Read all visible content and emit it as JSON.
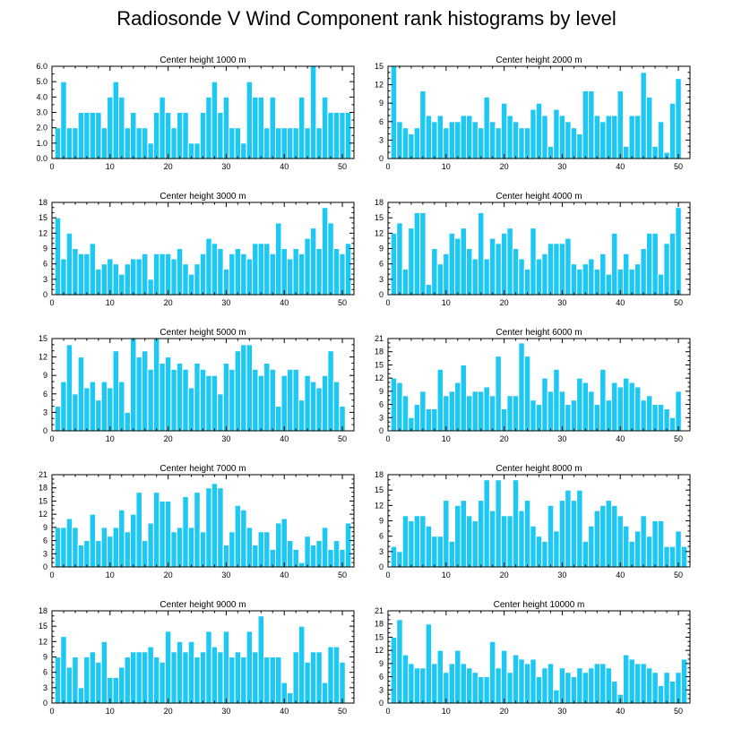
{
  "page_title": "Radiosonde V Wind Component rank histograms by level",
  "colors": {
    "bar": "#1ec8f5",
    "bar_edge": "#ffffff",
    "axis": "#000000"
  },
  "chart_data": [
    {
      "type": "bar",
      "title": "Center height 1000 m",
      "x": [
        1,
        2,
        3,
        4,
        5,
        6,
        7,
        8,
        9,
        10,
        11,
        12,
        13,
        14,
        15,
        16,
        17,
        18,
        19,
        20,
        21,
        22,
        23,
        24,
        25,
        26,
        27,
        28,
        29,
        30,
        31,
        32,
        33,
        34,
        35,
        36,
        37,
        38,
        39,
        40,
        41,
        42,
        43,
        44,
        45,
        46,
        47,
        48,
        49,
        50,
        51
      ],
      "values": [
        2,
        5,
        2,
        2,
        3,
        3,
        3,
        3,
        2,
        4,
        5,
        4,
        2,
        3,
        2,
        2,
        1,
        3,
        4,
        3,
        2,
        3,
        3,
        1,
        1,
        3,
        4,
        5,
        3,
        4,
        2,
        2,
        1,
        5,
        4,
        4,
        2,
        4,
        2,
        2,
        2,
        2,
        4,
        2,
        6,
        2,
        4,
        3,
        3,
        3,
        3
      ],
      "ylim": [
        0,
        6
      ],
      "yticks": [
        "0.0",
        "1.0",
        "2.0",
        "3.0",
        "4.0",
        "5.0",
        "6.0"
      ],
      "xlim": [
        0,
        52
      ],
      "xticks": [
        "0",
        "10",
        "20",
        "30",
        "40",
        "50"
      ]
    },
    {
      "type": "bar",
      "title": "Center height 2000 m",
      "x": [
        1,
        2,
        3,
        4,
        5,
        6,
        7,
        8,
        9,
        10,
        11,
        12,
        13,
        14,
        15,
        16,
        17,
        18,
        19,
        20,
        21,
        22,
        23,
        24,
        25,
        26,
        27,
        28,
        29,
        30,
        31,
        32,
        33,
        34,
        35,
        36,
        37,
        38,
        39,
        40,
        41,
        42,
        43,
        44,
        45,
        46,
        47,
        48,
        49,
        50,
        51
      ],
      "values": [
        15,
        6,
        5,
        4,
        5,
        11,
        7,
        6,
        7,
        5,
        6,
        6,
        7,
        7,
        6,
        5,
        10,
        6,
        5,
        9,
        7,
        6,
        5,
        5,
        8,
        9,
        7,
        2,
        8,
        7,
        6,
        5,
        4,
        11,
        11,
        7,
        6,
        7,
        7,
        11,
        2,
        7,
        7,
        14,
        10,
        2,
        6,
        1,
        9,
        13,
        0
      ],
      "ylim": [
        0,
        15
      ],
      "yticks": [
        "0",
        "3",
        "6",
        "9",
        "12",
        "15"
      ],
      "xlim": [
        0,
        52
      ],
      "xticks": [
        "0",
        "10",
        "20",
        "30",
        "40",
        "50"
      ]
    },
    {
      "type": "bar",
      "title": "Center height 3000 m",
      "x": [
        1,
        2,
        3,
        4,
        5,
        6,
        7,
        8,
        9,
        10,
        11,
        12,
        13,
        14,
        15,
        16,
        17,
        18,
        19,
        20,
        21,
        22,
        23,
        24,
        25,
        26,
        27,
        28,
        29,
        30,
        31,
        32,
        33,
        34,
        35,
        36,
        37,
        38,
        39,
        40,
        41,
        42,
        43,
        44,
        45,
        46,
        47,
        48,
        49,
        50,
        51
      ],
      "values": [
        15,
        7,
        12,
        9,
        8,
        8,
        10,
        5,
        6,
        7,
        6,
        4,
        6,
        7,
        7,
        8,
        3,
        8,
        8,
        8,
        7,
        9,
        6,
        4,
        6,
        8,
        11,
        10,
        9,
        5,
        8,
        9,
        8,
        7,
        10,
        10,
        10,
        8,
        14,
        9,
        7,
        9,
        8,
        11,
        13,
        9,
        17,
        14,
        9,
        8,
        10
      ],
      "ylim": [
        0,
        18
      ],
      "yticks": [
        "0",
        "3",
        "6",
        "9",
        "12",
        "15",
        "18"
      ],
      "xlim": [
        0,
        52
      ],
      "xticks": [
        "0",
        "10",
        "20",
        "30",
        "40",
        "50"
      ]
    },
    {
      "type": "bar",
      "title": "Center height 4000 m",
      "x": [
        1,
        2,
        3,
        4,
        5,
        6,
        7,
        8,
        9,
        10,
        11,
        12,
        13,
        14,
        15,
        16,
        17,
        18,
        19,
        20,
        21,
        22,
        23,
        24,
        25,
        26,
        27,
        28,
        29,
        30,
        31,
        32,
        33,
        34,
        35,
        36,
        37,
        38,
        39,
        40,
        41,
        42,
        43,
        44,
        45,
        46,
        47,
        48,
        49,
        50,
        51
      ],
      "values": [
        12,
        14,
        5,
        13,
        16,
        16,
        2,
        9,
        6,
        8,
        12,
        11,
        13,
        9,
        7,
        16,
        7,
        11,
        10,
        12,
        13,
        9,
        7,
        5,
        13,
        7,
        8,
        10,
        10,
        10,
        11,
        6,
        5,
        6,
        7,
        5,
        8,
        4,
        12,
        5,
        8,
        5,
        6,
        9,
        12,
        12,
        4,
        10,
        12,
        17,
        0
      ],
      "ylim": [
        0,
        18
      ],
      "yticks": [
        "0",
        "3",
        "6",
        "9",
        "12",
        "15",
        "18"
      ],
      "xlim": [
        0,
        52
      ],
      "xticks": [
        "0",
        "10",
        "20",
        "30",
        "40",
        "50"
      ]
    },
    {
      "type": "bar",
      "title": "Center height 5000 m",
      "x": [
        1,
        2,
        3,
        4,
        5,
        6,
        7,
        8,
        9,
        10,
        11,
        12,
        13,
        14,
        15,
        16,
        17,
        18,
        19,
        20,
        21,
        22,
        23,
        24,
        25,
        26,
        27,
        28,
        29,
        30,
        31,
        32,
        33,
        34,
        35,
        36,
        37,
        38,
        39,
        40,
        41,
        42,
        43,
        44,
        45,
        46,
        47,
        48,
        49,
        50,
        51
      ],
      "values": [
        4,
        8,
        14,
        6,
        12,
        7,
        8,
        5,
        8,
        7,
        13,
        8,
        3,
        15,
        12,
        13,
        10,
        15,
        11,
        12,
        10,
        11,
        10,
        7,
        11,
        10,
        9,
        9,
        6,
        11,
        10,
        13,
        14,
        14,
        10,
        9,
        11,
        10,
        4,
        9,
        10,
        10,
        5,
        9,
        8,
        7,
        9,
        13,
        8,
        4,
        0
      ],
      "ylim": [
        0,
        15
      ],
      "yticks": [
        "0",
        "3",
        "6",
        "9",
        "12",
        "15"
      ],
      "xlim": [
        0,
        52
      ],
      "xticks": [
        "0",
        "10",
        "20",
        "30",
        "40",
        "50"
      ]
    },
    {
      "type": "bar",
      "title": "Center height 6000 m",
      "x": [
        1,
        2,
        3,
        4,
        5,
        6,
        7,
        8,
        9,
        10,
        11,
        12,
        13,
        14,
        15,
        16,
        17,
        18,
        19,
        20,
        21,
        22,
        23,
        24,
        25,
        26,
        27,
        28,
        29,
        30,
        31,
        32,
        33,
        34,
        35,
        36,
        37,
        38,
        39,
        40,
        41,
        42,
        43,
        44,
        45,
        46,
        47,
        48,
        49,
        50,
        51
      ],
      "values": [
        12,
        11,
        8,
        3,
        6,
        9,
        5,
        5,
        14,
        8,
        9,
        11,
        15,
        8,
        9,
        9,
        10,
        8,
        17,
        5,
        8,
        8,
        20,
        17,
        7,
        6,
        12,
        9,
        14,
        9,
        6,
        7,
        12,
        11,
        9,
        6,
        14,
        7,
        11,
        10,
        12,
        11,
        10,
        7,
        8,
        6,
        6,
        5,
        3,
        9,
        0
      ],
      "ylim": [
        0,
        21
      ],
      "yticks": [
        "0",
        "3",
        "6",
        "9",
        "12",
        "15",
        "18",
        "21"
      ],
      "xlim": [
        0,
        52
      ],
      "xticks": [
        "0",
        "10",
        "20",
        "30",
        "40",
        "50"
      ]
    },
    {
      "type": "bar",
      "title": "Center height 7000 m",
      "x": [
        1,
        2,
        3,
        4,
        5,
        6,
        7,
        8,
        9,
        10,
        11,
        12,
        13,
        14,
        15,
        16,
        17,
        18,
        19,
        20,
        21,
        22,
        23,
        24,
        25,
        26,
        27,
        28,
        29,
        30,
        31,
        32,
        33,
        34,
        35,
        36,
        37,
        38,
        39,
        40,
        41,
        42,
        43,
        44,
        45,
        46,
        47,
        48,
        49,
        50,
        51
      ],
      "values": [
        9,
        9,
        11,
        9,
        5,
        6,
        12,
        6,
        9,
        7,
        9,
        13,
        8,
        12,
        17,
        6,
        10,
        17,
        15,
        15,
        8,
        9,
        16,
        9,
        17,
        8,
        18,
        19,
        18,
        5,
        8,
        14,
        13,
        9,
        5,
        8,
        8,
        4,
        10,
        11,
        6,
        4,
        1,
        7,
        5,
        6,
        9,
        4,
        6,
        4,
        10
      ],
      "ylim": [
        0,
        21
      ],
      "yticks": [
        "0",
        "3",
        "6",
        "9",
        "12",
        "15",
        "18",
        "21"
      ],
      "xlim": [
        0,
        52
      ],
      "xticks": [
        "0",
        "10",
        "20",
        "30",
        "40",
        "50"
      ]
    },
    {
      "type": "bar",
      "title": "Center height 8000 m",
      "x": [
        1,
        2,
        3,
        4,
        5,
        6,
        7,
        8,
        9,
        10,
        11,
        12,
        13,
        14,
        15,
        16,
        17,
        18,
        19,
        20,
        21,
        22,
        23,
        24,
        25,
        26,
        27,
        28,
        29,
        30,
        31,
        32,
        33,
        34,
        35,
        36,
        37,
        38,
        39,
        40,
        41,
        42,
        43,
        44,
        45,
        46,
        47,
        48,
        49,
        50,
        51
      ],
      "values": [
        4,
        3,
        10,
        9,
        10,
        10,
        8,
        6,
        6,
        13,
        5,
        12,
        13,
        10,
        9,
        13,
        17,
        11,
        17,
        10,
        10,
        17,
        11,
        13,
        8,
        6,
        5,
        12,
        7,
        13,
        15,
        13,
        15,
        5,
        8,
        11,
        12,
        13,
        12,
        10,
        8,
        5,
        7,
        10,
        6,
        9,
        9,
        4,
        4,
        7,
        4
      ],
      "ylim": [
        0,
        18
      ],
      "yticks": [
        "0",
        "3",
        "6",
        "9",
        "12",
        "15",
        "18"
      ],
      "xlim": [
        0,
        52
      ],
      "xticks": [
        "0",
        "10",
        "20",
        "30",
        "40",
        "50"
      ]
    },
    {
      "type": "bar",
      "title": "Center height 9000 m",
      "x": [
        1,
        2,
        3,
        4,
        5,
        6,
        7,
        8,
        9,
        10,
        11,
        12,
        13,
        14,
        15,
        16,
        17,
        18,
        19,
        20,
        21,
        22,
        23,
        24,
        25,
        26,
        27,
        28,
        29,
        30,
        31,
        32,
        33,
        34,
        35,
        36,
        37,
        38,
        39,
        40,
        41,
        42,
        43,
        44,
        45,
        46,
        47,
        48,
        49,
        50,
        51
      ],
      "values": [
        9,
        13,
        7,
        9,
        3,
        9,
        10,
        8,
        12,
        5,
        5,
        7,
        9,
        10,
        10,
        10,
        11,
        9,
        8,
        14,
        10,
        12,
        10,
        12,
        9,
        10,
        14,
        11,
        10,
        14,
        9,
        10,
        9,
        14,
        10,
        17,
        9,
        9,
        9,
        4,
        2,
        10,
        15,
        8,
        10,
        10,
        4,
        11,
        11,
        8,
        0
      ],
      "ylim": [
        0,
        18
      ],
      "yticks": [
        "0",
        "3",
        "6",
        "9",
        "12",
        "15",
        "18"
      ],
      "xlim": [
        0,
        52
      ],
      "xticks": [
        "0",
        "10",
        "20",
        "30",
        "40",
        "50"
      ]
    },
    {
      "type": "bar",
      "title": "Center height 10000 m",
      "x": [
        1,
        2,
        3,
        4,
        5,
        6,
        7,
        8,
        9,
        10,
        11,
        12,
        13,
        14,
        15,
        16,
        17,
        18,
        19,
        20,
        21,
        22,
        23,
        24,
        25,
        26,
        27,
        28,
        29,
        30,
        31,
        32,
        33,
        34,
        35,
        36,
        37,
        38,
        39,
        40,
        41,
        42,
        43,
        44,
        45,
        46,
        47,
        48,
        49,
        50,
        51
      ],
      "values": [
        15,
        19,
        11,
        9,
        8,
        8,
        18,
        9,
        12,
        7,
        9,
        12,
        9,
        8,
        7,
        6,
        6,
        14,
        8,
        12,
        7,
        11,
        10,
        9,
        10,
        6,
        8,
        9,
        3,
        8,
        7,
        6,
        8,
        7,
        8,
        9,
        9,
        8,
        5,
        2,
        11,
        10,
        9,
        9,
        8,
        7,
        4,
        7,
        5,
        7,
        10
      ],
      "ylim": [
        0,
        21
      ],
      "yticks": [
        "0",
        "3",
        "6",
        "9",
        "12",
        "15",
        "18",
        "21"
      ],
      "xlim": [
        0,
        52
      ],
      "xticks": [
        "0",
        "10",
        "20",
        "30",
        "40",
        "50"
      ]
    }
  ]
}
